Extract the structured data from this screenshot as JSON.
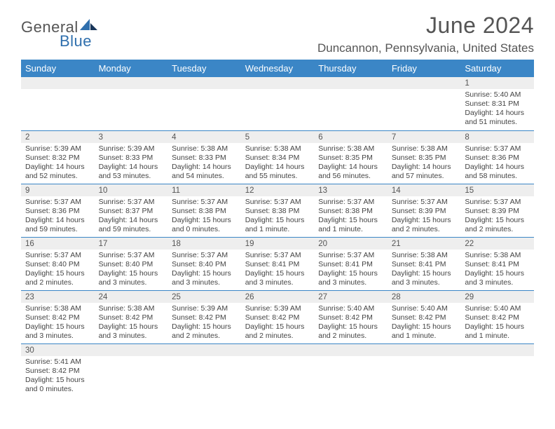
{
  "logo": {
    "part1": "General",
    "part2": "Blue"
  },
  "title": "June 2024",
  "location": "Duncannon, Pennsylvania, United States",
  "colors": {
    "header_bg": "#3b86c6",
    "header_text": "#ffffff",
    "daynum_bg": "#eeeeee",
    "border": "#3b86c6",
    "body_text": "#444444",
    "title_text": "#555555",
    "logo_gray": "#555555",
    "logo_blue": "#2f6fad"
  },
  "weekdays": [
    "Sunday",
    "Monday",
    "Tuesday",
    "Wednesday",
    "Thursday",
    "Friday",
    "Saturday"
  ],
  "weeks": [
    [
      null,
      null,
      null,
      null,
      null,
      null,
      {
        "n": "1",
        "sr": "Sunrise: 5:40 AM",
        "ss": "Sunset: 8:31 PM",
        "d1": "Daylight: 14 hours",
        "d2": "and 51 minutes."
      }
    ],
    [
      {
        "n": "2",
        "sr": "Sunrise: 5:39 AM",
        "ss": "Sunset: 8:32 PM",
        "d1": "Daylight: 14 hours",
        "d2": "and 52 minutes."
      },
      {
        "n": "3",
        "sr": "Sunrise: 5:39 AM",
        "ss": "Sunset: 8:33 PM",
        "d1": "Daylight: 14 hours",
        "d2": "and 53 minutes."
      },
      {
        "n": "4",
        "sr": "Sunrise: 5:38 AM",
        "ss": "Sunset: 8:33 PM",
        "d1": "Daylight: 14 hours",
        "d2": "and 54 minutes."
      },
      {
        "n": "5",
        "sr": "Sunrise: 5:38 AM",
        "ss": "Sunset: 8:34 PM",
        "d1": "Daylight: 14 hours",
        "d2": "and 55 minutes."
      },
      {
        "n": "6",
        "sr": "Sunrise: 5:38 AM",
        "ss": "Sunset: 8:35 PM",
        "d1": "Daylight: 14 hours",
        "d2": "and 56 minutes."
      },
      {
        "n": "7",
        "sr": "Sunrise: 5:38 AM",
        "ss": "Sunset: 8:35 PM",
        "d1": "Daylight: 14 hours",
        "d2": "and 57 minutes."
      },
      {
        "n": "8",
        "sr": "Sunrise: 5:37 AM",
        "ss": "Sunset: 8:36 PM",
        "d1": "Daylight: 14 hours",
        "d2": "and 58 minutes."
      }
    ],
    [
      {
        "n": "9",
        "sr": "Sunrise: 5:37 AM",
        "ss": "Sunset: 8:36 PM",
        "d1": "Daylight: 14 hours",
        "d2": "and 59 minutes."
      },
      {
        "n": "10",
        "sr": "Sunrise: 5:37 AM",
        "ss": "Sunset: 8:37 PM",
        "d1": "Daylight: 14 hours",
        "d2": "and 59 minutes."
      },
      {
        "n": "11",
        "sr": "Sunrise: 5:37 AM",
        "ss": "Sunset: 8:38 PM",
        "d1": "Daylight: 15 hours",
        "d2": "and 0 minutes."
      },
      {
        "n": "12",
        "sr": "Sunrise: 5:37 AM",
        "ss": "Sunset: 8:38 PM",
        "d1": "Daylight: 15 hours",
        "d2": "and 1 minute."
      },
      {
        "n": "13",
        "sr": "Sunrise: 5:37 AM",
        "ss": "Sunset: 8:38 PM",
        "d1": "Daylight: 15 hours",
        "d2": "and 1 minute."
      },
      {
        "n": "14",
        "sr": "Sunrise: 5:37 AM",
        "ss": "Sunset: 8:39 PM",
        "d1": "Daylight: 15 hours",
        "d2": "and 2 minutes."
      },
      {
        "n": "15",
        "sr": "Sunrise: 5:37 AM",
        "ss": "Sunset: 8:39 PM",
        "d1": "Daylight: 15 hours",
        "d2": "and 2 minutes."
      }
    ],
    [
      {
        "n": "16",
        "sr": "Sunrise: 5:37 AM",
        "ss": "Sunset: 8:40 PM",
        "d1": "Daylight: 15 hours",
        "d2": "and 2 minutes."
      },
      {
        "n": "17",
        "sr": "Sunrise: 5:37 AM",
        "ss": "Sunset: 8:40 PM",
        "d1": "Daylight: 15 hours",
        "d2": "and 3 minutes."
      },
      {
        "n": "18",
        "sr": "Sunrise: 5:37 AM",
        "ss": "Sunset: 8:40 PM",
        "d1": "Daylight: 15 hours",
        "d2": "and 3 minutes."
      },
      {
        "n": "19",
        "sr": "Sunrise: 5:37 AM",
        "ss": "Sunset: 8:41 PM",
        "d1": "Daylight: 15 hours",
        "d2": "and 3 minutes."
      },
      {
        "n": "20",
        "sr": "Sunrise: 5:37 AM",
        "ss": "Sunset: 8:41 PM",
        "d1": "Daylight: 15 hours",
        "d2": "and 3 minutes."
      },
      {
        "n": "21",
        "sr": "Sunrise: 5:38 AM",
        "ss": "Sunset: 8:41 PM",
        "d1": "Daylight: 15 hours",
        "d2": "and 3 minutes."
      },
      {
        "n": "22",
        "sr": "Sunrise: 5:38 AM",
        "ss": "Sunset: 8:41 PM",
        "d1": "Daylight: 15 hours",
        "d2": "and 3 minutes."
      }
    ],
    [
      {
        "n": "23",
        "sr": "Sunrise: 5:38 AM",
        "ss": "Sunset: 8:42 PM",
        "d1": "Daylight: 15 hours",
        "d2": "and 3 minutes."
      },
      {
        "n": "24",
        "sr": "Sunrise: 5:38 AM",
        "ss": "Sunset: 8:42 PM",
        "d1": "Daylight: 15 hours",
        "d2": "and 3 minutes."
      },
      {
        "n": "25",
        "sr": "Sunrise: 5:39 AM",
        "ss": "Sunset: 8:42 PM",
        "d1": "Daylight: 15 hours",
        "d2": "and 2 minutes."
      },
      {
        "n": "26",
        "sr": "Sunrise: 5:39 AM",
        "ss": "Sunset: 8:42 PM",
        "d1": "Daylight: 15 hours",
        "d2": "and 2 minutes."
      },
      {
        "n": "27",
        "sr": "Sunrise: 5:40 AM",
        "ss": "Sunset: 8:42 PM",
        "d1": "Daylight: 15 hours",
        "d2": "and 2 minutes."
      },
      {
        "n": "28",
        "sr": "Sunrise: 5:40 AM",
        "ss": "Sunset: 8:42 PM",
        "d1": "Daylight: 15 hours",
        "d2": "and 1 minute."
      },
      {
        "n": "29",
        "sr": "Sunrise: 5:40 AM",
        "ss": "Sunset: 8:42 PM",
        "d1": "Daylight: 15 hours",
        "d2": "and 1 minute."
      }
    ],
    [
      {
        "n": "30",
        "sr": "Sunrise: 5:41 AM",
        "ss": "Sunset: 8:42 PM",
        "d1": "Daylight: 15 hours",
        "d2": "and 0 minutes."
      },
      null,
      null,
      null,
      null,
      null,
      null
    ]
  ]
}
